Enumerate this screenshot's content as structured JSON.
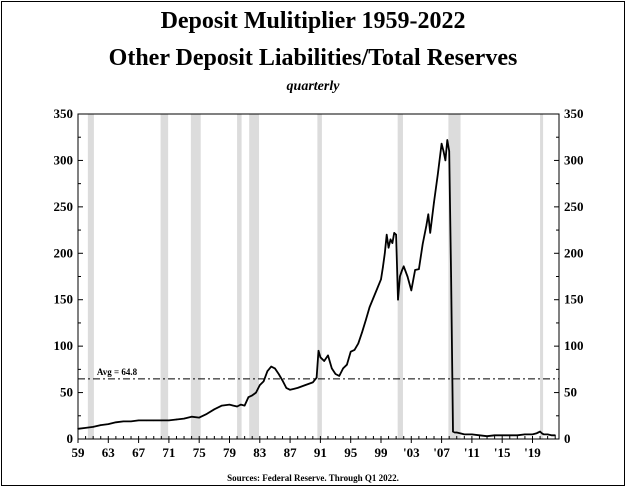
{
  "chart_data": {
    "type": "line",
    "title": "Deposit Mulitiplier 1959-2022",
    "subtitle": "Other Deposit Liabilities/Total Reserves",
    "frequency_label": "quarterly",
    "source": "Sources: Federal Reserve.  Through Q1 2022.",
    "ylim": [
      0,
      350
    ],
    "xlim": [
      1959,
      2022.5
    ],
    "grid": false,
    "y_ticks": [
      0,
      50,
      100,
      150,
      200,
      250,
      300,
      350
    ],
    "x_ticks": [
      {
        "year": 1959,
        "label": "59"
      },
      {
        "year": 1963,
        "label": "63"
      },
      {
        "year": 1967,
        "label": "67"
      },
      {
        "year": 1971,
        "label": "71"
      },
      {
        "year": 1975,
        "label": "75"
      },
      {
        "year": 1979,
        "label": "79"
      },
      {
        "year": 1983,
        "label": "83"
      },
      {
        "year": 1987,
        "label": "87"
      },
      {
        "year": 1991,
        "label": "91"
      },
      {
        "year": 1995,
        "label": "95"
      },
      {
        "year": 1999,
        "label": "99"
      },
      {
        "year": 2003,
        "label": "'03"
      },
      {
        "year": 2007,
        "label": "'07"
      },
      {
        "year": 2011,
        "label": "'11"
      },
      {
        "year": 2015,
        "label": "'15"
      },
      {
        "year": 2019,
        "label": "'19"
      }
    ],
    "recessions": [
      [
        1960.3,
        1961.1
      ],
      [
        1969.9,
        1970.9
      ],
      [
        1973.9,
        1975.2
      ],
      [
        1980.0,
        1980.6
      ],
      [
        1981.6,
        1982.9
      ],
      [
        1990.6,
        1991.2
      ],
      [
        2001.2,
        2001.9
      ],
      [
        2007.9,
        2009.5
      ],
      [
        2020.0,
        2020.4
      ]
    ],
    "average": {
      "value": 64.8,
      "label": "Avg = 64.8"
    },
    "series": [
      {
        "color": "#000000",
        "x": [
          1959.0,
          1960.0,
          1961.0,
          1962.0,
          1963.0,
          1964.0,
          1965.0,
          1966.0,
          1967.0,
          1968.0,
          1969.0,
          1970.0,
          1971.0,
          1972.0,
          1973.0,
          1974.0,
          1975.0,
          1976.0,
          1977.0,
          1978.0,
          1979.0,
          1979.5,
          1980.0,
          1980.5,
          1981.0,
          1981.5,
          1982.0,
          1982.5,
          1983.0,
          1983.5,
          1984.0,
          1984.5,
          1985.0,
          1985.5,
          1986.0,
          1986.5,
          1987.0,
          1987.5,
          1988.0,
          1989.0,
          1990.0,
          1990.5,
          1990.75,
          1991.0,
          1991.5,
          1992.0,
          1992.5,
          1993.0,
          1993.5,
          1994.0,
          1994.5,
          1995.0,
          1995.5,
          1996.0,
          1996.5,
          1997.0,
          1997.5,
          1998.0,
          1998.5,
          1999.0,
          1999.25,
          1999.5,
          1999.75,
          2000.0,
          2000.25,
          2000.5,
          2000.75,
          2001.0,
          2001.25,
          2001.5,
          2001.75,
          2002.0,
          2002.5,
          2003.0,
          2003.5,
          2004.0,
          2004.5,
          2005.0,
          2005.25,
          2005.5,
          2006.0,
          2006.5,
          2007.0,
          2007.25,
          2007.5,
          2007.75,
          2008.0,
          2008.25,
          2008.5,
          2008.75,
          2009.0,
          2009.5,
          2010.0,
          2011.0,
          2012.0,
          2013.0,
          2014.0,
          2015.0,
          2016.0,
          2017.0,
          2018.0,
          2019.0,
          2019.5,
          2019.75,
          2020.0,
          2020.25,
          2020.5,
          2021.0,
          2021.5,
          2022.0
        ],
        "y": [
          11,
          12,
          13,
          15,
          16,
          18,
          19,
          19,
          20,
          20,
          20,
          20,
          20,
          21,
          22,
          24,
          23,
          27,
          32,
          36,
          37,
          36,
          35,
          37,
          36,
          45,
          47,
          50,
          58,
          62,
          73,
          78,
          76,
          70,
          63,
          55,
          53,
          54,
          55,
          58,
          61,
          66,
          95,
          88,
          84,
          90,
          76,
          70,
          68,
          76,
          80,
          94,
          96,
          103,
          115,
          128,
          142,
          152,
          162,
          172,
          185,
          200,
          220,
          206,
          215,
          211,
          222,
          220,
          150,
          175,
          181,
          186,
          175,
          160,
          182,
          183,
          210,
          230,
          242,
          222,
          255,
          285,
          318,
          310,
          300,
          322,
          310,
          175,
          8,
          7,
          7,
          6,
          5,
          5,
          4,
          3,
          4,
          4,
          4,
          4,
          5,
          5,
          6,
          7,
          8,
          6,
          5,
          5,
          4,
          4
        ]
      }
    ]
  }
}
